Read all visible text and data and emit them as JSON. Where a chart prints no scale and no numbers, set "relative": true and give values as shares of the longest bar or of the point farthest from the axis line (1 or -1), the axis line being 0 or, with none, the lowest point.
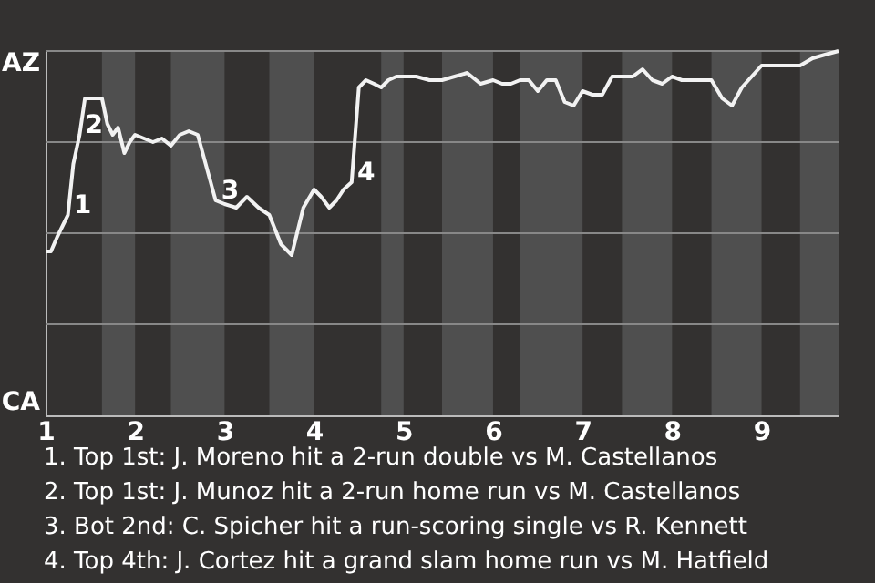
{
  "chart_data": {
    "type": "line",
    "relative": true,
    "x": [
      1,
      1.06,
      1.13,
      1.19,
      1.25,
      1.31,
      1.38,
      1.44,
      1.5,
      1.56,
      1.63,
      1.69,
      1.75,
      1.81,
      1.88,
      1.94,
      2,
      2.1,
      2.2,
      2.3,
      2.4,
      2.5,
      2.6,
      2.7,
      2.8,
      2.9,
      3,
      3.13,
      3.25,
      3.38,
      3.5,
      3.63,
      3.75,
      3.88,
      4,
      4.08,
      4.17,
      4.25,
      4.33,
      4.42,
      4.5,
      4.58,
      4.67,
      4.75,
      4.83,
      4.92,
      5,
      5.14,
      5.29,
      5.43,
      5.57,
      5.71,
      5.86,
      6,
      6.1,
      6.2,
      6.3,
      6.4,
      6.5,
      6.6,
      6.7,
      6.8,
      6.9,
      7,
      7.11,
      7.22,
      7.33,
      7.44,
      7.56,
      7.67,
      7.78,
      7.89,
      8,
      8.11,
      8.22,
      8.33,
      8.44,
      8.56,
      8.67,
      8.78,
      8.89,
      9,
      9.14,
      9.29,
      9.43,
      9.57,
      9.71,
      9.86
    ],
    "xlim": [
      1,
      9.86
    ],
    "xticks": [
      1,
      2,
      3,
      4,
      5,
      6,
      7,
      8,
      9
    ],
    "series": [
      {
        "color": "#f2f2f2",
        "values": [
          0.45,
          0.45,
          0.49,
          0.52,
          0.55,
          0.69,
          0.77,
          0.87,
          0.87,
          0.87,
          0.87,
          0.8,
          0.77,
          0.79,
          0.72,
          0.75,
          0.77,
          0.76,
          0.75,
          0.76,
          0.74,
          0.77,
          0.78,
          0.77,
          0.68,
          0.59,
          0.58,
          0.57,
          0.6,
          0.57,
          0.55,
          0.47,
          0.44,
          0.57,
          0.62,
          0.6,
          0.57,
          0.59,
          0.62,
          0.64,
          0.9,
          0.92,
          0.91,
          0.9,
          0.92,
          0.93,
          0.93,
          0.93,
          0.92,
          0.92,
          0.93,
          0.94,
          0.91,
          0.92,
          0.91,
          0.91,
          0.92,
          0.92,
          0.89,
          0.92,
          0.92,
          0.86,
          0.85,
          0.89,
          0.88,
          0.88,
          0.93,
          0.93,
          0.93,
          0.95,
          0.92,
          0.91,
          0.93,
          0.92,
          0.92,
          0.92,
          0.92,
          0.87,
          0.85,
          0.9,
          0.93,
          0.96,
          0.96,
          0.96,
          0.96,
          0.98,
          0.99,
          1
        ]
      }
    ],
    "bands": [
      {
        "axis": "x",
        "from": 1.63,
        "to": 2,
        "color": "#4f4f4f"
      },
      {
        "axis": "x",
        "from": 2.4,
        "to": 3,
        "color": "#4f4f4f"
      },
      {
        "axis": "x",
        "from": 3.5,
        "to": 4,
        "color": "#4f4f4f"
      },
      {
        "axis": "x",
        "from": 4.75,
        "to": 5,
        "color": "#4f4f4f"
      },
      {
        "axis": "x",
        "from": 5.43,
        "to": 6,
        "color": "#4f4f4f"
      },
      {
        "axis": "x",
        "from": 6.3,
        "to": 7,
        "color": "#4f4f4f"
      },
      {
        "axis": "x",
        "from": 7.44,
        "to": 8,
        "color": "#4f4f4f"
      },
      {
        "axis": "x",
        "from": 8.44,
        "to": 9,
        "color": "#4f4f4f"
      },
      {
        "axis": "x",
        "from": 9.43,
        "to": 9.86,
        "color": "#4f4f4f"
      }
    ],
    "grid": "y",
    "annotations": [
      "AZ",
      "CA",
      {
        "text": "1",
        "x": 1.25,
        "y": 0.55
      },
      {
        "text": "2",
        "x": 1.38,
        "y": 0.77
      },
      {
        "text": "3",
        "x": 2.9,
        "y": 0.59
      },
      {
        "text": "4",
        "x": 4.42,
        "y": 0.64
      },
      "1. Top 1st: J. Moreno hit a 2-run double vs M. Castellanos",
      "2. Top 1st: J. Munoz hit a 2-run home run vs M. Castellanos",
      "3. Bot 2nd: C. Spicher hit a run-scoring single vs R. Kennett",
      "4. Top 4th: J. Cortez hit a grand slam home run vs M. Hatfield"
    ]
  }
}
